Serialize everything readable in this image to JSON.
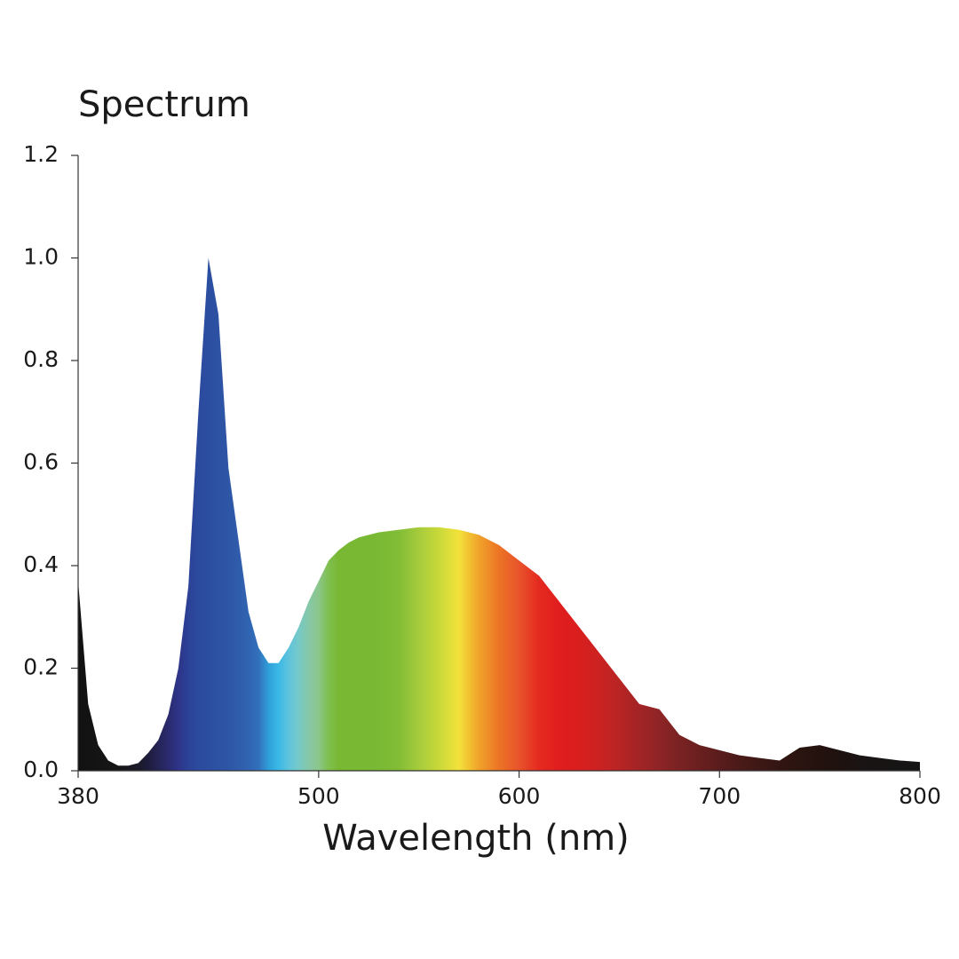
{
  "chart_data": {
    "type": "area",
    "title": "Spectrum",
    "x_label": "Wavelength (nm)",
    "x": [
      380,
      385,
      390,
      395,
      400,
      405,
      410,
      415,
      420,
      425,
      430,
      435,
      440,
      445,
      450,
      455,
      460,
      465,
      470,
      475,
      480,
      485,
      490,
      495,
      500,
      505,
      510,
      515,
      520,
      525,
      530,
      540,
      550,
      560,
      570,
      580,
      590,
      600,
      610,
      620,
      630,
      640,
      650,
      660,
      670,
      680,
      690,
      700,
      710,
      720,
      730,
      740,
      750,
      760,
      770,
      780,
      790,
      800
    ],
    "values": [
      0.37,
      0.13,
      0.05,
      0.02,
      0.01,
      0.01,
      0.015,
      0.035,
      0.06,
      0.11,
      0.2,
      0.36,
      0.7,
      1.0,
      0.89,
      0.59,
      0.45,
      0.31,
      0.24,
      0.21,
      0.21,
      0.24,
      0.28,
      0.33,
      0.37,
      0.41,
      0.43,
      0.445,
      0.455,
      0.46,
      0.465,
      0.47,
      0.475,
      0.475,
      0.47,
      0.46,
      0.44,
      0.41,
      0.38,
      0.33,
      0.28,
      0.23,
      0.18,
      0.13,
      0.12,
      0.07,
      0.05,
      0.04,
      0.03,
      0.025,
      0.02,
      0.045,
      0.05,
      0.04,
      0.03,
      0.025,
      0.02,
      0.017
    ],
    "colors": [
      "#111111",
      "#121212",
      "#141414",
      "#151515",
      "#161616",
      "#181820",
      "#1a1a2a",
      "#1e1c3c",
      "#252456",
      "#2a2a6e",
      "#2d3488",
      "#2c4296",
      "#2b4b9e",
      "#2c4ea0",
      "#2d52a3",
      "#2e56a6",
      "#2f5cab",
      "#3064b2",
      "#3270bb",
      "#2f9fd8",
      "#3ab9e6",
      "#5fc3dc",
      "#76c9c8",
      "#86c8a8",
      "#8bc68a",
      "#7fbf4e",
      "#78b833",
      "#78b833",
      "#78b833",
      "#78b833",
      "#7ab934",
      "#82bd36",
      "#a6cb3c",
      "#c9d93a",
      "#f3e23a",
      "#f0a22a",
      "#ec7425",
      "#e8532a",
      "#e42a20",
      "#e01e1e",
      "#d91e1e",
      "#cc2222",
      "#b82424",
      "#a22425",
      "#8e2426",
      "#7a2223",
      "#6a1f1f",
      "#5a1c1c",
      "#4a1a18",
      "#3e1815",
      "#321512",
      "#2a1410",
      "#24120f",
      "#1e120f",
      "#1a1414",
      "#181414",
      "#161414",
      "#151414"
    ],
    "xlim": [
      380,
      800
    ],
    "xticks": [
      380,
      500,
      600,
      700,
      800
    ],
    "ylim": [
      0,
      1.2
    ],
    "yticks": [
      {
        "value": 0,
        "label": "0.0"
      },
      0.2,
      0.4,
      0.6,
      0.8,
      {
        "value": 1,
        "label": "1.0"
      },
      1.2
    ]
  }
}
